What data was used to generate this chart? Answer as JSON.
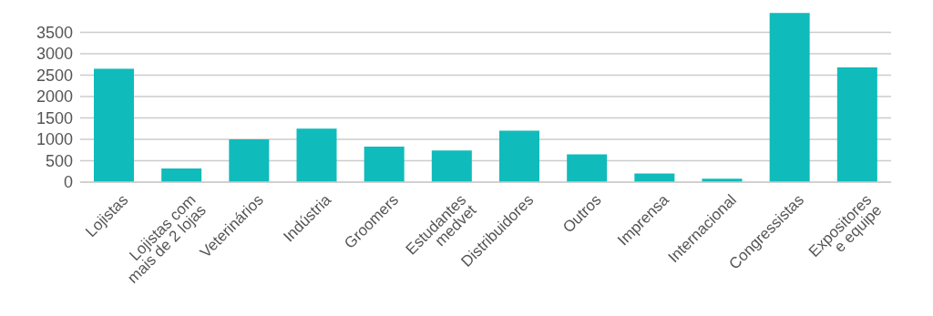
{
  "chart_data": {
    "type": "bar",
    "categories": [
      "Lojistas",
      "Lojistas com\nmais de 2 lojas",
      "Veterinários",
      "Indústria",
      "Groomers",
      "Estudantes\nmedvet",
      "Distribuidores",
      "Outros",
      "Imprensa",
      "Internacional",
      "Congressistas",
      "Expositores\ne equipe"
    ],
    "values": [
      2650,
      320,
      1000,
      1250,
      830,
      740,
      1200,
      650,
      200,
      80,
      3950,
      2680
    ],
    "color": "#10bbbb",
    "ylim": [
      0,
      4000
    ],
    "yticks": [
      0,
      500,
      1000,
      1500,
      2000,
      2500,
      3000,
      3500
    ],
    "grid": "y",
    "legend": false
  }
}
